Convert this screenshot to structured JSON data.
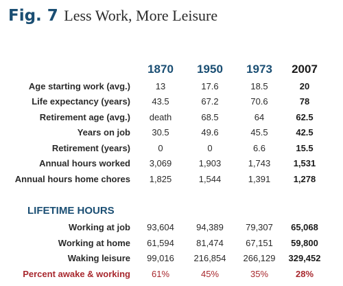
{
  "title": {
    "fig": "Fig. 7",
    "subtitle": "Less Work, More Leisure"
  },
  "chart_data": {
    "type": "table",
    "columns": [
      "1870",
      "1950",
      "1973",
      "2007"
    ],
    "rows": [
      {
        "label": "Age starting work (avg.)",
        "values": [
          "13",
          "17.6",
          "18.5",
          "20"
        ]
      },
      {
        "label": "Life expectancy (years)",
        "values": [
          "43.5",
          "67.2",
          "70.6",
          "78"
        ]
      },
      {
        "label": "Retirement age (avg.)",
        "values": [
          "death",
          "68.5",
          "64",
          "62.5"
        ]
      },
      {
        "label": "Years on job",
        "values": [
          "30.5",
          "49.6",
          "45.5",
          "42.5"
        ]
      },
      {
        "label": "Retirement (years)",
        "values": [
          "0",
          "0",
          "6.6",
          "15.5"
        ]
      },
      {
        "label": "Annual hours worked",
        "values": [
          "3,069",
          "1,903",
          "1,743",
          "1,531"
        ]
      },
      {
        "label": "Annual hours home chores",
        "values": [
          "1,825",
          "1,544",
          "1,391",
          "1,278"
        ]
      }
    ],
    "section_title": "LIFETIME HOURS",
    "lifetime_rows": [
      {
        "label": "Working at job",
        "values": [
          "93,604",
          "94,389",
          "79,307",
          "65,068"
        ]
      },
      {
        "label": "Working at home",
        "values": [
          "61,594",
          "81,474",
          "67,151",
          "59,800"
        ]
      },
      {
        "label": "Waking leisure",
        "values": [
          "99,016",
          "216,854",
          "266,129",
          "329,452"
        ]
      },
      {
        "label": "Percent awake & working",
        "values": [
          "61%",
          "45%",
          "35%",
          "28%"
        ]
      }
    ],
    "colors": {
      "heading": "#1a4e73",
      "highlight": "#a8282e",
      "text": "#2a2a2a"
    }
  }
}
